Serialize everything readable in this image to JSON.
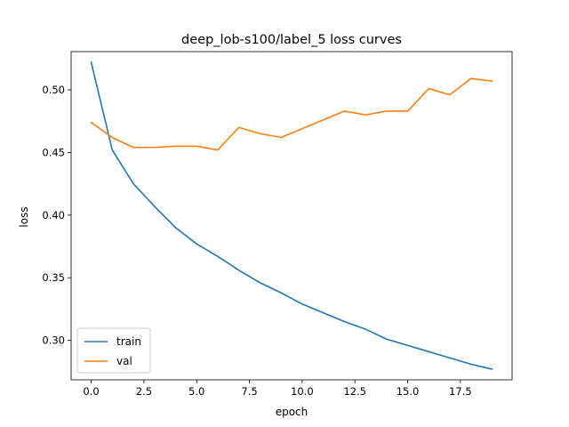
{
  "chart_data": {
    "type": "line",
    "title": "deep_lob-s100/label_5 loss curves",
    "xlabel": "epoch",
    "ylabel": "loss",
    "xlim": [
      -0.95,
      19.95
    ],
    "ylim": [
      0.2685,
      0.5305
    ],
    "xticks": [
      0.0,
      2.5,
      5.0,
      7.5,
      10.0,
      12.5,
      15.0,
      17.5
    ],
    "xtick_labels": [
      "0.0",
      "2.5",
      "5.0",
      "7.5",
      "10.0",
      "12.5",
      "15.0",
      "17.5"
    ],
    "yticks": [
      0.3,
      0.35,
      0.4,
      0.45,
      0.5
    ],
    "ytick_labels": [
      "0.30",
      "0.35",
      "0.40",
      "0.45",
      "0.50"
    ],
    "grid": false,
    "legend": "lower-left",
    "x": [
      0,
      1,
      2,
      3,
      4,
      5,
      6,
      7,
      8,
      9,
      10,
      11,
      12,
      13,
      14,
      15,
      16,
      17,
      18,
      19
    ],
    "series": [
      {
        "name": "train",
        "color": "#1f77b4",
        "values": [
          0.522,
          0.452,
          0.425,
          0.407,
          0.39,
          0.377,
          0.367,
          0.356,
          0.346,
          0.338,
          0.329,
          0.322,
          0.315,
          0.309,
          0.301,
          0.296,
          0.291,
          0.286,
          0.281,
          0.277
        ]
      },
      {
        "name": "val",
        "color": "#ff7f0e",
        "values": [
          0.474,
          0.462,
          0.454,
          0.454,
          0.455,
          0.455,
          0.452,
          0.47,
          0.465,
          0.462,
          0.469,
          0.476,
          0.483,
          0.48,
          0.483,
          0.483,
          0.501,
          0.496,
          0.509,
          0.507
        ]
      }
    ]
  }
}
